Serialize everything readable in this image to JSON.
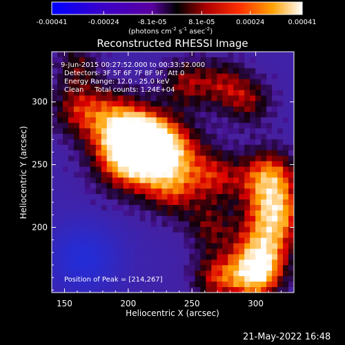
{
  "colorbar": {
    "ticks": [
      "-0.00041",
      "-0.00024",
      "-8.1e-05",
      "8.1e-05",
      "0.00024",
      "0.00041"
    ],
    "tick_values": [
      -0.00041,
      -0.00024,
      -8.1e-05,
      8.1e-05,
      0.00024,
      0.00041
    ],
    "range": [
      -0.00041,
      0.00041
    ],
    "units_main": "(photons cm",
    "units_exp1": "-2",
    "units_mid": " s",
    "units_exp2": "-1",
    "units_tail": " asec",
    "units_exp3": "-2",
    "units_end": ")"
  },
  "chart_data": {
    "type": "heatmap",
    "title": "Reconstructed RHESSI Image",
    "xlabel": "Heliocentric X (arcsec)",
    "ylabel": "Heliocentric Y (arcsec)",
    "xlim": [
      140,
      330
    ],
    "ylim": [
      148,
      340
    ],
    "xticks": [
      150,
      200,
      250,
      300
    ],
    "yticks": [
      200,
      250,
      300
    ],
    "xtick_labels": [
      "150",
      "200",
      "250",
      "300"
    ],
    "ytick_labels": [
      "200",
      "250",
      "300"
    ],
    "colormap": "hot",
    "info_lines": [
      "9-Jun-2015 00:27:52.000 to 00:33:52.000",
      "Detectors: 3F 5F 6F 7F 8F 9F, Att 0",
      "Energy Range: 12.0 - 25.0 keV",
      "Clean     Total counts: 1.24E+04"
    ],
    "peak_text": "Position of Peak = [214,267]",
    "peak": [
      214,
      267
    ]
  },
  "footer": {
    "timestamp": "21-May-2022 16:48"
  }
}
